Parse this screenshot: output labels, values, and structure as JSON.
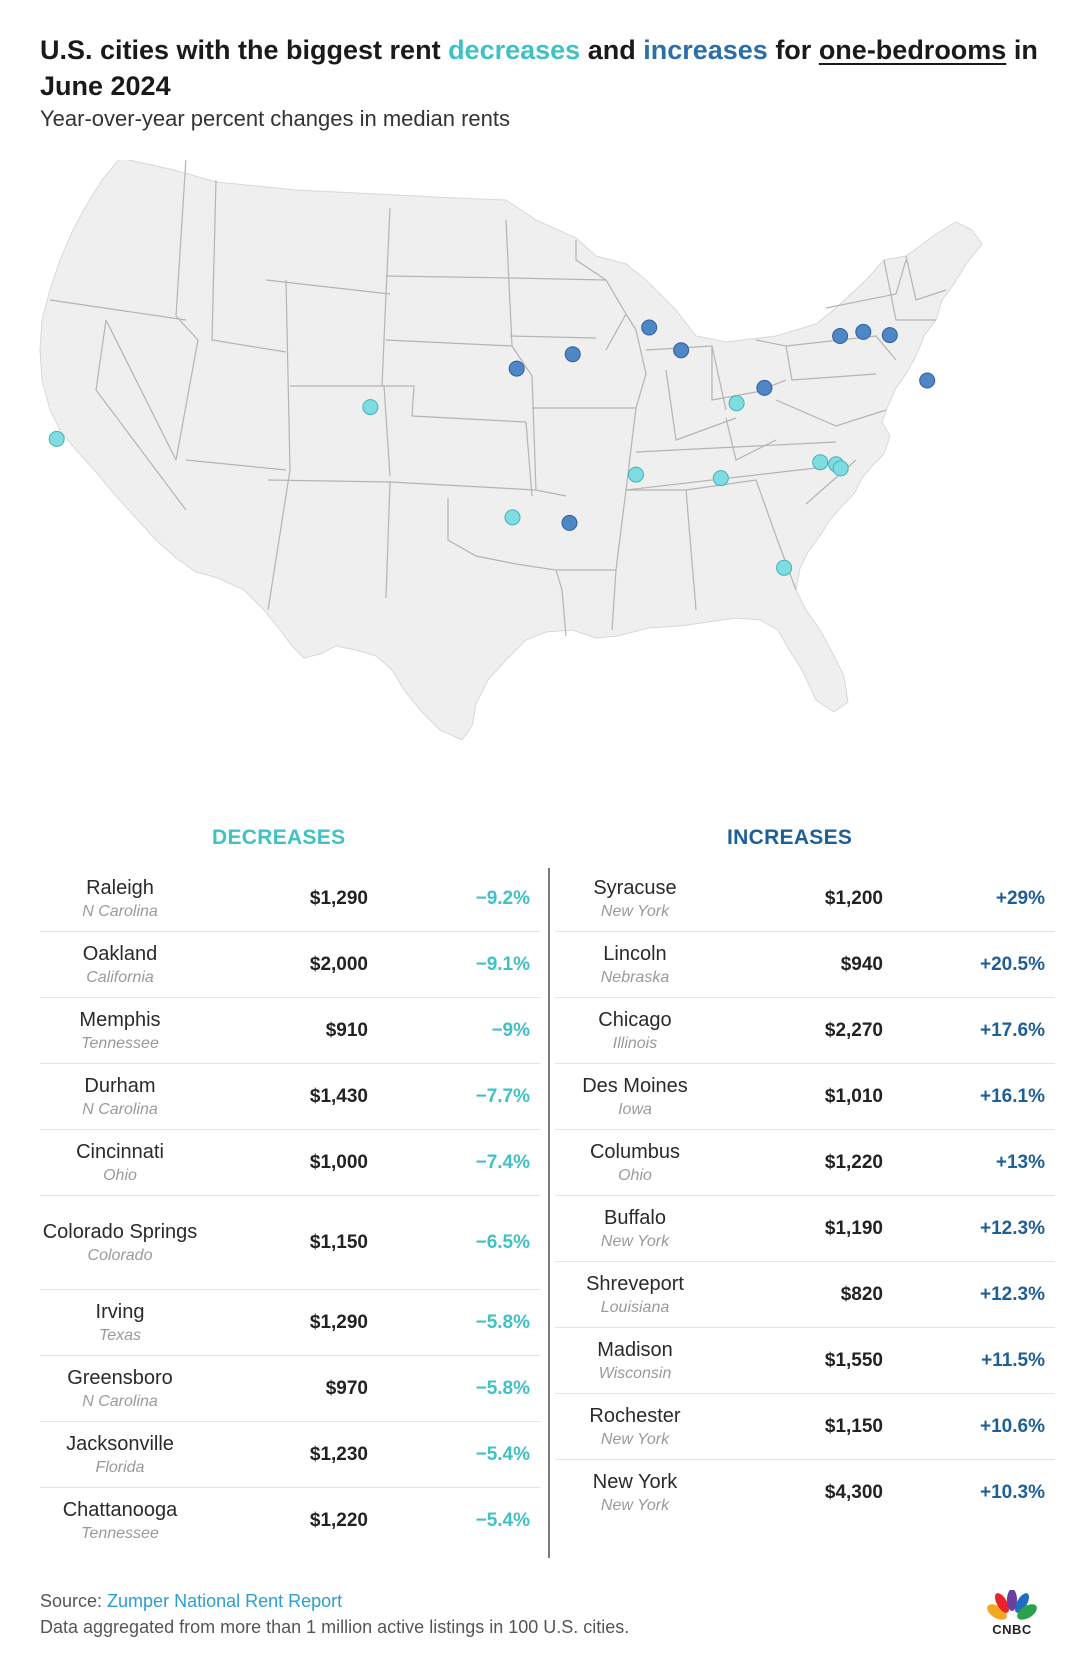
{
  "title": {
    "part1": "U.S. cities with the biggest rent ",
    "dec_word": "decreases",
    "and": " and ",
    "inc_word": "increases",
    "for": " for ",
    "underlined": "one-bedrooms",
    "part2": " in June 2024"
  },
  "subtitle": "Year-over-year percent changes in median rents",
  "colors": {
    "decrease": "#3fc1c6",
    "increase": "#2b6ea8",
    "land": "#efefef",
    "border": "#b4b4b4"
  },
  "map_points": [
    {
      "city": "Oakland",
      "kind": "decrease",
      "lon": -122.27,
      "lat": 37.8
    },
    {
      "city": "Colorado Springs",
      "kind": "decrease",
      "lon": -104.82,
      "lat": 38.83
    },
    {
      "city": "Irving",
      "kind": "decrease",
      "lon": -96.95,
      "lat": 32.81
    },
    {
      "city": "Shreveport",
      "kind": "increase",
      "lon": -93.75,
      "lat": 32.52
    },
    {
      "city": "Lincoln",
      "kind": "increase",
      "lon": -96.7,
      "lat": 40.81
    },
    {
      "city": "Des Moines",
      "kind": "increase",
      "lon": -93.61,
      "lat": 41.59
    },
    {
      "city": "Madison",
      "kind": "increase",
      "lon": -89.4,
      "lat": 43.07
    },
    {
      "city": "Chicago",
      "kind": "increase",
      "lon": -87.63,
      "lat": 41.88
    },
    {
      "city": "Memphis",
      "kind": "decrease",
      "lon": -90.05,
      "lat": 35.15
    },
    {
      "city": "Chattanooga",
      "kind": "decrease",
      "lon": -85.31,
      "lat": 35.05
    },
    {
      "city": "Cincinnati",
      "kind": "decrease",
      "lon": -84.51,
      "lat": 39.1
    },
    {
      "city": "Columbus",
      "kind": "increase",
      "lon": -82.99,
      "lat": 39.96
    },
    {
      "city": "Jacksonville",
      "kind": "decrease",
      "lon": -81.66,
      "lat": 30.33
    },
    {
      "city": "Greensboro",
      "kind": "decrease",
      "lon": -79.79,
      "lat": 36.07
    },
    {
      "city": "Durham",
      "kind": "decrease",
      "lon": -78.9,
      "lat": 35.99
    },
    {
      "city": "Raleigh",
      "kind": "decrease",
      "lon": -78.64,
      "lat": 35.78
    },
    {
      "city": "Buffalo",
      "kind": "increase",
      "lon": -78.88,
      "lat": 42.89
    },
    {
      "city": "Rochester",
      "kind": "increase",
      "lon": -77.61,
      "lat": 43.16
    },
    {
      "city": "Syracuse",
      "kind": "increase",
      "lon": -76.15,
      "lat": 43.05
    },
    {
      "city": "New York",
      "kind": "increase",
      "lon": -74.0,
      "lat": 40.71
    }
  ],
  "table": {
    "dec_header": "DECREASES",
    "inc_header": "INCREASES",
    "decreases": [
      {
        "city": "Raleigh",
        "state": "N Carolina",
        "rent": "$1,290",
        "pct": "−9.2%"
      },
      {
        "city": "Oakland",
        "state": "California",
        "rent": "$2,000",
        "pct": "−9.1%"
      },
      {
        "city": "Memphis",
        "state": "Tennessee",
        "rent": "$910",
        "pct": "−9%"
      },
      {
        "city": "Durham",
        "state": "N Carolina",
        "rent": "$1,430",
        "pct": "−7.7%"
      },
      {
        "city": "Cincinnati",
        "state": "Ohio",
        "rent": "$1,000",
        "pct": "−7.4%"
      },
      {
        "city": "Colorado Springs",
        "state": "Colorado",
        "rent": "$1,150",
        "pct": "−6.5%"
      },
      {
        "city": "Irving",
        "state": "Texas",
        "rent": "$1,290",
        "pct": "−5.8%"
      },
      {
        "city": "Greensboro",
        "state": "N Carolina",
        "rent": "$970",
        "pct": "−5.8%"
      },
      {
        "city": "Jacksonville",
        "state": "Florida",
        "rent": "$1,230",
        "pct": "−5.4%"
      },
      {
        "city": "Chattanooga",
        "state": "Tennessee",
        "rent": "$1,220",
        "pct": "−5.4%"
      }
    ],
    "increases": [
      {
        "city": "Syracuse",
        "state": "New York",
        "rent": "$1,200",
        "pct": "+29%"
      },
      {
        "city": "Lincoln",
        "state": "Nebraska",
        "rent": "$940",
        "pct": "+20.5%"
      },
      {
        "city": "Chicago",
        "state": "Illinois",
        "rent": "$2,270",
        "pct": "+17.6%"
      },
      {
        "city": "Des Moines",
        "state": "Iowa",
        "rent": "$1,010",
        "pct": "+16.1%"
      },
      {
        "city": "Columbus",
        "state": "Ohio",
        "rent": "$1,220",
        "pct": "+13%"
      },
      {
        "city": "Buffalo",
        "state": "New York",
        "rent": "$1,190",
        "pct": "+12.3%"
      },
      {
        "city": "Shreveport",
        "state": "Louisiana",
        "rent": "$820",
        "pct": "+12.3%"
      },
      {
        "city": "Madison",
        "state": "Wisconsin",
        "rent": "$1,550",
        "pct": "+11.5%"
      },
      {
        "city": "Rochester",
        "state": "New York",
        "rent": "$1,150",
        "pct": "+10.6%"
      },
      {
        "city": "New York",
        "state": "New York",
        "rent": "$4,300",
        "pct": "+10.3%"
      }
    ]
  },
  "footer": {
    "source_label": "Source: ",
    "source_link": "Zumper National Rent Report",
    "note": "Data aggregated from more than 1 million active listings in 100 U.S. cities.",
    "logo_text": "CNBC",
    "logo_icon": "peacock-logo-icon"
  }
}
